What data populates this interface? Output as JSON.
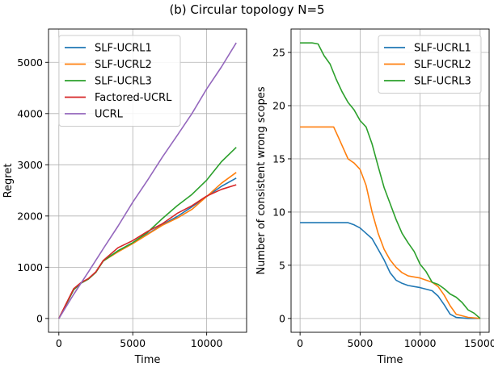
{
  "figure_title": "(b) Circular topology N=5",
  "chart_data": [
    {
      "type": "line",
      "xlabel": "Time",
      "ylabel": "Regret",
      "xlim": [
        -700,
        12700
      ],
      "ylim": [
        -270,
        5650
      ],
      "xticks": [
        0,
        5000,
        10000
      ],
      "yticks": [
        0,
        1000,
        2000,
        3000,
        4000,
        5000
      ],
      "xtick_labels": [
        "0",
        "5000",
        "10000"
      ],
      "ytick_labels": [
        "0",
        "1000",
        "2000",
        "3000",
        "4000",
        "5000"
      ],
      "grid": true,
      "legend_position": "top-left",
      "series": [
        {
          "name": "SLF-UCRL1",
          "color": "#1f77b4",
          "x": [
            0,
            500,
            1000,
            1500,
            2000,
            2500,
            3000,
            4000,
            5000,
            6000,
            7000,
            8000,
            9000,
            10000,
            11000,
            12000
          ],
          "y": [
            0,
            280,
            560,
            690,
            770,
            900,
            1120,
            1320,
            1480,
            1650,
            1830,
            1990,
            2180,
            2380,
            2580,
            2740
          ]
        },
        {
          "name": "SLF-UCRL2",
          "color": "#ff7f0e",
          "x": [
            0,
            500,
            1000,
            1500,
            2000,
            2500,
            3000,
            4000,
            5000,
            6000,
            7000,
            8000,
            9000,
            10000,
            11000,
            12000
          ],
          "y": [
            0,
            280,
            560,
            690,
            770,
            900,
            1120,
            1300,
            1460,
            1640,
            1820,
            1960,
            2130,
            2380,
            2640,
            2850
          ]
        },
        {
          "name": "SLF-UCRL3",
          "color": "#2ca02c",
          "x": [
            0,
            500,
            1000,
            1500,
            2000,
            2500,
            3000,
            4000,
            5000,
            6000,
            7000,
            8000,
            9000,
            10000,
            11000,
            12000
          ],
          "y": [
            0,
            280,
            560,
            690,
            770,
            900,
            1120,
            1320,
            1480,
            1680,
            1950,
            2200,
            2420,
            2700,
            3060,
            3340
          ]
        },
        {
          "name": "Factored-UCRL",
          "color": "#d62728",
          "x": [
            0,
            500,
            1000,
            1500,
            2000,
            2500,
            3000,
            4000,
            5000,
            6000,
            7000,
            8000,
            9000,
            10000,
            11000,
            12000
          ],
          "y": [
            0,
            290,
            580,
            700,
            780,
            910,
            1130,
            1380,
            1520,
            1700,
            1850,
            2050,
            2200,
            2390,
            2520,
            2610
          ]
        },
        {
          "name": "UCRL",
          "color": "#9467bd",
          "x": [
            0,
            1000,
            2000,
            3000,
            4000,
            5000,
            6000,
            7000,
            8000,
            9000,
            10000,
            11000,
            12000
          ],
          "y": [
            0,
            470,
            910,
            1360,
            1800,
            2270,
            2700,
            3150,
            3570,
            4000,
            4480,
            4910,
            5380
          ]
        }
      ]
    },
    {
      "type": "line",
      "xlabel": "Time",
      "ylabel": "Number of consistent wrong scopes",
      "xlim": [
        -750,
        15750
      ],
      "ylim": [
        -1.3,
        27.2
      ],
      "xticks": [
        0,
        5000,
        10000,
        15000
      ],
      "yticks": [
        0,
        5,
        10,
        15,
        20,
        25
      ],
      "xtick_labels": [
        "0",
        "5000",
        "10000",
        "15000"
      ],
      "ytick_labels": [
        "0",
        "5",
        "10",
        "15",
        "20",
        "25"
      ],
      "grid": true,
      "legend_position": "top-right",
      "series": [
        {
          "name": "SLF-UCRL1",
          "color": "#1f77b4",
          "x": [
            0,
            1000,
            2000,
            3000,
            4000,
            4500,
            5000,
            5500,
            6000,
            6500,
            7000,
            7500,
            8000,
            8500,
            9000,
            10000,
            11000,
            11500,
            12000,
            12500,
            13000,
            14000,
            15000
          ],
          "y": [
            9,
            9,
            9,
            9,
            9,
            8.8,
            8.5,
            8,
            7.5,
            6.5,
            5.5,
            4.3,
            3.6,
            3.3,
            3.1,
            2.9,
            2.6,
            2.1,
            1.3,
            0.4,
            0.1,
            0,
            0
          ]
        },
        {
          "name": "SLF-UCRL2",
          "color": "#ff7f0e",
          "x": [
            0,
            1000,
            2000,
            2800,
            3200,
            3600,
            4000,
            4500,
            5000,
            5500,
            6000,
            6500,
            7000,
            7500,
            8000,
            8500,
            9000,
            10000,
            11000,
            11500,
            12000,
            12500,
            13000,
            14000,
            15000
          ],
          "y": [
            18,
            18,
            18,
            18,
            17,
            16,
            15,
            14.6,
            14,
            12.5,
            10,
            8,
            6.5,
            5.5,
            4.8,
            4.3,
            4.0,
            3.8,
            3.4,
            3.0,
            2.2,
            1.2,
            0.4,
            0.1,
            0
          ]
        },
        {
          "name": "SLF-UCRL3",
          "color": "#2ca02c",
          "x": [
            0,
            1000,
            1500,
            2000,
            2500,
            3000,
            3500,
            4000,
            4500,
            5000,
            5500,
            6000,
            6500,
            7000,
            7500,
            8000,
            8500,
            9000,
            9500,
            10000,
            10500,
            11000,
            11500,
            12000,
            12500,
            13000,
            13500,
            14000,
            14500,
            15000
          ],
          "y": [
            25.9,
            25.9,
            25.8,
            24.7,
            23.9,
            22.5,
            21.3,
            20.3,
            19.6,
            18.6,
            18.0,
            16.4,
            14.3,
            12.3,
            10.8,
            9.3,
            8.0,
            7.1,
            6.3,
            5.1,
            4.4,
            3.4,
            3.2,
            2.8,
            2.3,
            2.0,
            1.5,
            0.8,
            0.5,
            0
          ]
        }
      ]
    }
  ]
}
